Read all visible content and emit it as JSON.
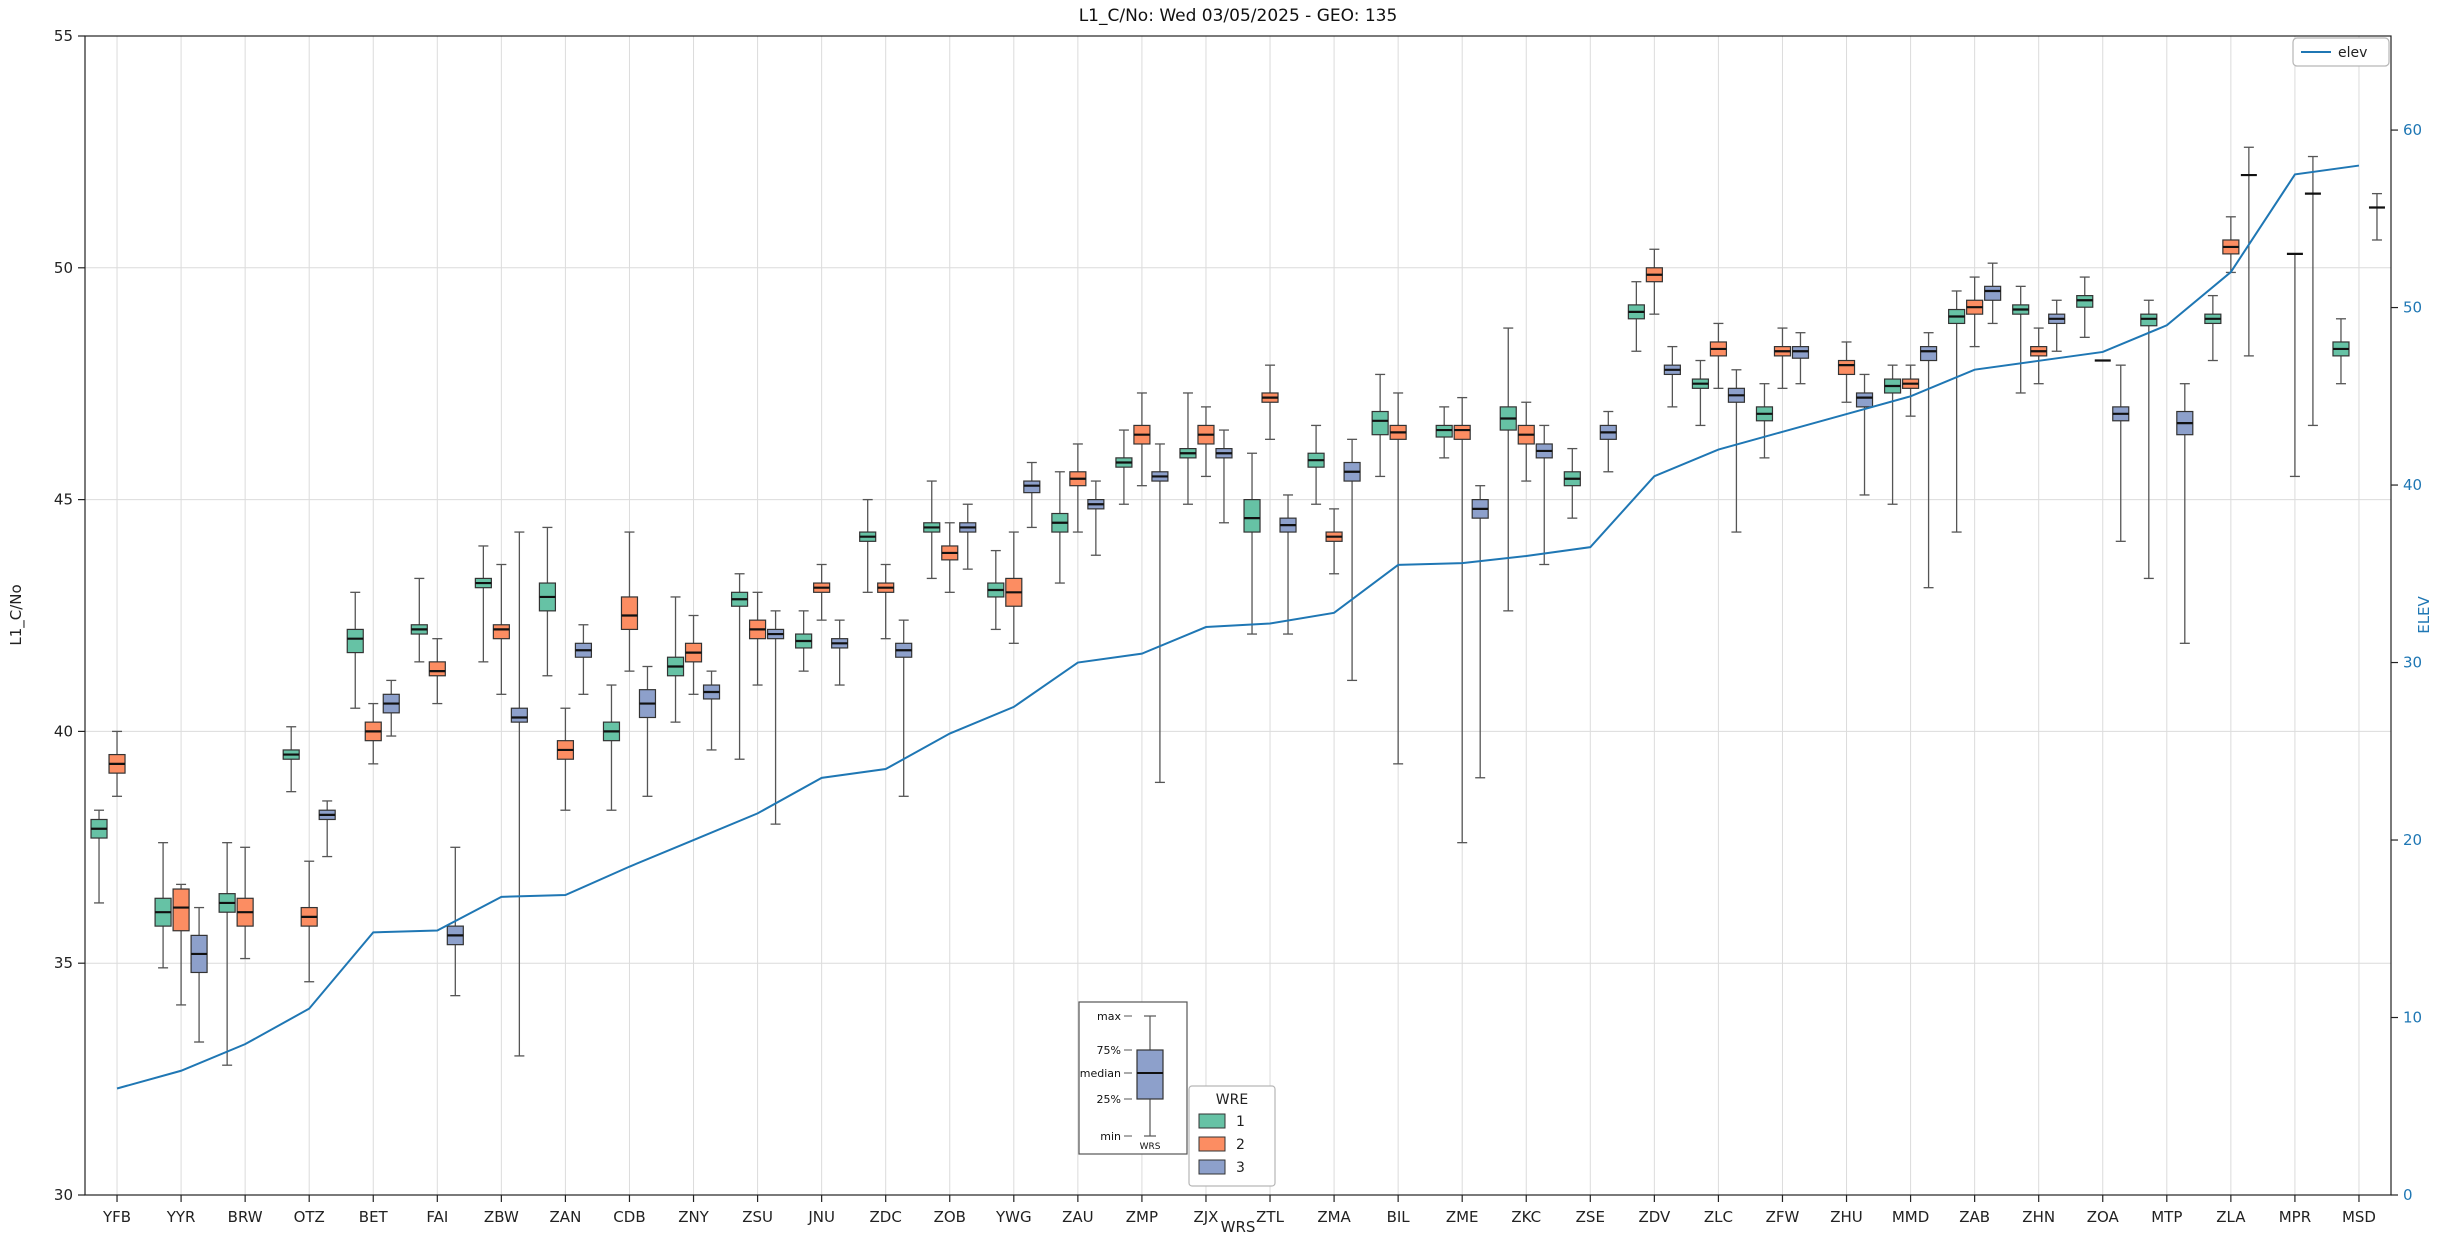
{
  "chart_data": {
    "type": "boxplot+line",
    "title": "L1_C/No: Wed 03/05/2025 - GEO: 135",
    "xlabel": "WRS",
    "ylabel": "L1_C/No",
    "y2label": "ELEV",
    "ylim": [
      30,
      55
    ],
    "yticks": [
      30,
      35,
      40,
      45,
      50,
      55
    ],
    "y2lim": [
      0,
      65.3
    ],
    "y2ticks": [
      0,
      10,
      20,
      30,
      40,
      50,
      60
    ],
    "grid": true,
    "categories": [
      "YFB",
      "YYR",
      "BRW",
      "OTZ",
      "BET",
      "FAI",
      "ZBW",
      "ZAN",
      "CDB",
      "ZNY",
      "ZSU",
      "JNU",
      "ZDC",
      "ZOB",
      "YWG",
      "ZAU",
      "ZMP",
      "ZJX",
      "ZTL",
      "ZMA",
      "BIL",
      "ZME",
      "ZKC",
      "ZSE",
      "ZDV",
      "ZLC",
      "ZFW",
      "ZHU",
      "MMD",
      "ZAB",
      "ZHN",
      "ZOA",
      "MTP",
      "ZLA",
      "MPR",
      "MSD"
    ],
    "legend": {
      "line_label": "elev",
      "hue_title": "WRE",
      "hue_labels": [
        "1",
        "2",
        "3"
      ]
    },
    "colors": {
      "1": "#66c2a5",
      "2": "#fc8d62",
      "3": "#8da0cb",
      "line": "#1f77b4"
    },
    "inset": {
      "labels": [
        "max",
        "75%",
        "median",
        "25%",
        "min"
      ],
      "xlabel": "WRS",
      "box_color": "#8da0cb"
    },
    "elev": [
      6,
      7,
      8.5,
      10.5,
      14.8,
      14.9,
      16.8,
      16.9,
      18.5,
      20,
      21.5,
      23.5,
      24,
      26,
      27.5,
      30,
      30.5,
      32,
      32.2,
      32.8,
      35.5,
      35.6,
      36,
      36.5,
      40.5,
      42,
      43,
      44,
      45,
      46.5,
      47,
      47.5,
      49,
      52,
      57.5,
      58
    ],
    "boxes": {
      "1": [
        [
          36.3,
          37.7,
          37.9,
          38.1,
          38.3
        ],
        [
          34.9,
          35.8,
          36.1,
          36.4,
          37.6
        ],
        [
          32.8,
          36.1,
          36.3,
          36.5,
          37.6
        ],
        [
          38.7,
          39.4,
          39.5,
          39.6,
          40.1
        ],
        [
          40.5,
          41.7,
          42.0,
          42.2,
          43.0
        ],
        [
          41.5,
          42.1,
          42.2,
          42.3,
          43.3
        ],
        [
          41.5,
          43.1,
          43.2,
          43.3,
          44.0
        ],
        [
          41.2,
          42.6,
          42.9,
          43.2,
          44.4
        ],
        [
          38.3,
          39.8,
          40.0,
          40.2,
          41.0
        ],
        [
          40.2,
          41.2,
          41.4,
          41.6,
          42.9
        ],
        [
          39.4,
          42.7,
          42.85,
          43.0,
          43.4
        ],
        [
          41.3,
          41.8,
          41.95,
          42.1,
          42.6
        ],
        [
          43.0,
          44.1,
          44.2,
          44.3,
          45.0
        ],
        [
          43.3,
          44.3,
          44.4,
          44.5,
          45.4
        ],
        [
          42.2,
          42.9,
          43.05,
          43.2,
          43.9
        ],
        [
          43.2,
          44.3,
          44.5,
          44.7,
          45.6
        ],
        [
          44.9,
          45.7,
          45.8,
          45.9,
          46.5
        ],
        [
          44.9,
          45.9,
          46.0,
          46.1,
          47.3
        ],
        [
          42.1,
          44.3,
          44.6,
          45.0,
          46.0
        ],
        [
          44.9,
          45.7,
          45.85,
          46.0,
          46.6
        ],
        [
          45.5,
          46.4,
          46.7,
          46.9,
          47.7
        ],
        [
          45.9,
          46.35,
          46.5,
          46.6,
          47.0
        ],
        [
          42.6,
          46.5,
          46.75,
          47.0,
          48.7
        ],
        [
          44.6,
          45.3,
          45.45,
          45.6,
          46.1
        ],
        [
          48.2,
          48.9,
          49.05,
          49.2,
          49.7
        ],
        [
          46.6,
          47.4,
          47.5,
          47.6,
          48.0
        ],
        [
          45.9,
          46.7,
          46.85,
          47.0,
          47.5
        ],
        null,
        [
          44.9,
          47.3,
          47.45,
          47.6,
          47.9
        ],
        [
          44.3,
          48.8,
          48.95,
          49.1,
          49.5
        ],
        [
          47.3,
          49.0,
          49.1,
          49.2,
          49.6
        ],
        [
          48.5,
          49.15,
          49.3,
          49.4,
          49.8
        ],
        [
          43.3,
          48.75,
          48.9,
          49.0,
          49.3
        ],
        [
          48.0,
          48.8,
          48.9,
          49.0,
          49.4
        ],
        null,
        [
          47.5,
          48.1,
          48.25,
          48.4,
          48.9
        ]
      ],
      "2": [
        [
          38.6,
          39.1,
          39.3,
          39.5,
          40.0
        ],
        [
          34.1,
          35.7,
          36.2,
          36.6,
          36.7
        ],
        [
          35.1,
          35.8,
          36.1,
          36.4,
          37.5
        ],
        [
          34.6,
          35.8,
          36.0,
          36.2,
          37.2
        ],
        [
          39.3,
          39.8,
          40.0,
          40.2,
          40.6
        ],
        [
          40.6,
          41.2,
          41.3,
          41.5,
          42.0
        ],
        [
          40.8,
          42.0,
          42.2,
          42.3,
          43.6
        ],
        [
          38.3,
          39.4,
          39.6,
          39.8,
          40.5
        ],
        [
          41.3,
          42.2,
          42.5,
          42.9,
          44.3
        ],
        [
          40.8,
          41.5,
          41.7,
          41.9,
          42.5
        ],
        [
          41.0,
          42.0,
          42.2,
          42.4,
          43.0
        ],
        [
          42.4,
          43.0,
          43.1,
          43.2,
          43.6
        ],
        [
          42.0,
          43.0,
          43.1,
          43.2,
          43.6
        ],
        [
          43.0,
          43.7,
          43.85,
          44.0,
          44.5
        ],
        [
          41.9,
          42.7,
          43.0,
          43.3,
          44.3
        ],
        [
          44.3,
          45.3,
          45.45,
          45.6,
          46.2
        ],
        [
          45.3,
          46.2,
          46.4,
          46.6,
          47.3
        ],
        [
          45.5,
          46.2,
          46.4,
          46.6,
          47.0
        ],
        [
          46.3,
          47.1,
          47.2,
          47.3,
          47.9
        ],
        [
          43.4,
          44.1,
          44.2,
          44.3,
          44.8
        ],
        [
          39.3,
          46.3,
          46.45,
          46.6,
          47.3
        ],
        [
          37.6,
          46.3,
          46.5,
          46.6,
          47.2
        ],
        [
          45.4,
          46.2,
          46.4,
          46.6,
          47.1
        ],
        null,
        [
          49.0,
          49.7,
          49.85,
          50.0,
          50.4
        ],
        [
          47.4,
          48.1,
          48.25,
          48.4,
          48.8
        ],
        [
          47.4,
          48.1,
          48.2,
          48.3,
          48.7
        ],
        [
          47.1,
          47.7,
          47.9,
          48.0,
          48.4
        ],
        [
          46.8,
          47.4,
          47.5,
          47.6,
          47.9
        ],
        [
          48.3,
          49.0,
          49.15,
          49.3,
          49.8
        ],
        [
          47.5,
          48.1,
          48.2,
          48.3,
          48.7
        ],
        [
          48.0,
          48.0,
          48.0,
          48.0,
          48.0
        ],
        null,
        [
          49.9,
          50.3,
          50.45,
          50.6,
          51.1
        ],
        [
          45.5,
          50.3,
          50.3,
          50.3,
          50.3
        ],
        null
      ],
      "3": [
        null,
        [
          33.3,
          34.8,
          35.2,
          35.6,
          36.2
        ],
        null,
        [
          37.3,
          38.1,
          38.2,
          38.3,
          38.5
        ],
        [
          39.9,
          40.4,
          40.6,
          40.8,
          41.1
        ],
        [
          34.3,
          35.4,
          35.6,
          35.8,
          37.5
        ],
        [
          33.0,
          40.2,
          40.3,
          40.5,
          44.3
        ],
        [
          40.8,
          41.6,
          41.75,
          41.9,
          42.3
        ],
        [
          38.6,
          40.3,
          40.6,
          40.9,
          41.4
        ],
        [
          39.6,
          40.7,
          40.85,
          41.0,
          41.3
        ],
        [
          38.0,
          42.0,
          42.1,
          42.2,
          42.6
        ],
        [
          41.0,
          41.8,
          41.9,
          42.0,
          42.4
        ],
        [
          38.6,
          41.6,
          41.75,
          41.9,
          42.4
        ],
        [
          43.5,
          44.3,
          44.4,
          44.5,
          44.9
        ],
        [
          44.4,
          45.15,
          45.3,
          45.4,
          45.8
        ],
        [
          43.8,
          44.8,
          44.9,
          45.0,
          45.4
        ],
        [
          38.9,
          45.4,
          45.5,
          45.6,
          46.2
        ],
        [
          44.5,
          45.9,
          46.0,
          46.1,
          46.5
        ],
        [
          42.1,
          44.3,
          44.45,
          44.6,
          45.1
        ],
        [
          41.1,
          45.4,
          45.6,
          45.8,
          46.3
        ],
        null,
        [
          39.0,
          44.6,
          44.8,
          45.0,
          45.3
        ],
        [
          43.6,
          45.9,
          46.05,
          46.2,
          46.6
        ],
        [
          45.6,
          46.3,
          46.45,
          46.6,
          46.9
        ],
        [
          47.0,
          47.7,
          47.8,
          47.9,
          48.3
        ],
        [
          44.3,
          47.1,
          47.25,
          47.4,
          47.8
        ],
        [
          47.5,
          48.05,
          48.2,
          48.3,
          48.6
        ],
        [
          45.1,
          47.0,
          47.2,
          47.3,
          47.7
        ],
        [
          43.1,
          48.0,
          48.2,
          48.3,
          48.6
        ],
        [
          48.8,
          49.3,
          49.5,
          49.6,
          50.1
        ],
        [
          48.2,
          48.8,
          48.9,
          49.0,
          49.3
        ],
        [
          44.1,
          46.7,
          46.85,
          47.0,
          47.9
        ],
        [
          41.9,
          46.4,
          46.65,
          46.9,
          47.5
        ],
        [
          48.1,
          52.0,
          52.0,
          52.0,
          52.6
        ],
        [
          46.6,
          51.6,
          51.6,
          51.6,
          52.4
        ],
        [
          50.6,
          51.3,
          51.3,
          51.3,
          51.6
        ]
      ]
    }
  }
}
